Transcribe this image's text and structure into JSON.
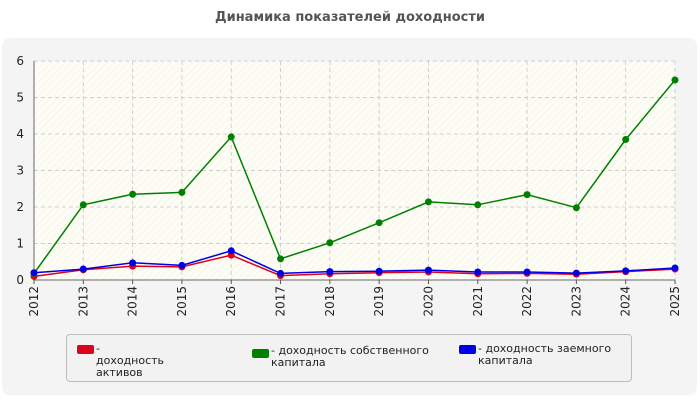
{
  "chart_data": {
    "type": "line",
    "title": "Динамика показателей доходности",
    "x": [
      "2012",
      "2013",
      "2014",
      "2015",
      "2016",
      "2017",
      "2018",
      "2019",
      "2020",
      "2021",
      "2022",
      "2023",
      "2024",
      "2025"
    ],
    "ylim": [
      0,
      6
    ],
    "yticks": [
      0,
      1,
      2,
      3,
      4,
      5,
      6
    ],
    "grid": true,
    "legend_position": "bottom",
    "series": [
      {
        "name": "- доходность активов",
        "color": "#e0001b",
        "values": [
          0.1,
          0.28,
          0.38,
          0.36,
          0.68,
          0.12,
          0.17,
          0.2,
          0.22,
          0.17,
          0.18,
          0.16,
          0.23,
          0.3
        ]
      },
      {
        "name": "- доходность собственного капитала",
        "color": "#008000",
        "values": [
          0.18,
          2.06,
          2.35,
          2.4,
          3.92,
          0.58,
          1.02,
          1.57,
          2.14,
          2.06,
          2.34,
          1.98,
          3.85,
          5.48
        ]
      },
      {
        "name": "- доходность заемного капитала",
        "color": "#0000e6",
        "values": [
          0.2,
          0.3,
          0.47,
          0.4,
          0.8,
          0.18,
          0.23,
          0.24,
          0.27,
          0.22,
          0.22,
          0.19,
          0.25,
          0.33
        ]
      }
    ]
  }
}
